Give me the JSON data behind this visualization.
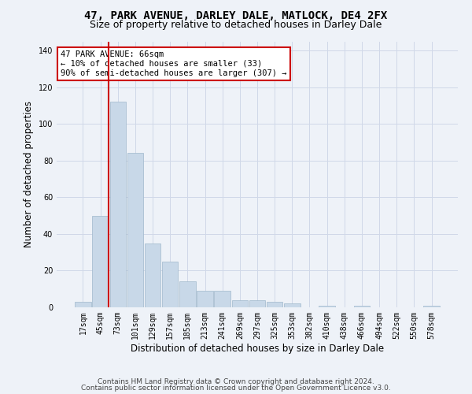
{
  "title": "47, PARK AVENUE, DARLEY DALE, MATLOCK, DE4 2FX",
  "subtitle": "Size of property relative to detached houses in Darley Dale",
  "xlabel": "Distribution of detached houses by size in Darley Dale",
  "ylabel": "Number of detached properties",
  "bin_labels": [
    "17sqm",
    "45sqm",
    "73sqm",
    "101sqm",
    "129sqm",
    "157sqm",
    "185sqm",
    "213sqm",
    "241sqm",
    "269sqm",
    "297sqm",
    "325sqm",
    "353sqm",
    "382sqm",
    "410sqm",
    "438sqm",
    "466sqm",
    "494sqm",
    "522sqm",
    "550sqm",
    "578sqm"
  ],
  "bar_heights": [
    3,
    50,
    112,
    84,
    35,
    25,
    14,
    9,
    9,
    4,
    4,
    3,
    2,
    0,
    1,
    0,
    1,
    0,
    0,
    0,
    1
  ],
  "bar_color": "#c8d8e8",
  "bar_edge_color": "#a0b8cc",
  "vline_x_index": 1,
  "vline_color": "#cc0000",
  "annotation_text": "47 PARK AVENUE: 66sqm\n← 10% of detached houses are smaller (33)\n90% of semi-detached houses are larger (307) →",
  "annotation_box_color": "#ffffff",
  "annotation_border_color": "#cc0000",
  "ylim": [
    0,
    145
  ],
  "yticks": [
    0,
    20,
    40,
    60,
    80,
    100,
    120,
    140
  ],
  "grid_color": "#d0d8e8",
  "bg_color": "#eef2f8",
  "plot_bg_color": "#eef2f8",
  "footer1": "Contains HM Land Registry data © Crown copyright and database right 2024.",
  "footer2": "Contains public sector information licensed under the Open Government Licence v3.0.",
  "title_fontsize": 10,
  "subtitle_fontsize": 9,
  "xlabel_fontsize": 8.5,
  "ylabel_fontsize": 8.5,
  "tick_fontsize": 7,
  "annotation_fontsize": 7.5,
  "footer_fontsize": 6.5
}
